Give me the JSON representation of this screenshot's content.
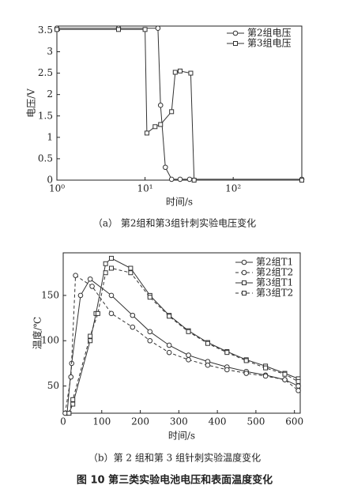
{
  "chart_data": [
    {
      "type": "line",
      "xlog": true,
      "xlim": [
        1,
        600
      ],
      "ylim": [
        0,
        3.6
      ],
      "xticks": [
        {
          "value": 1,
          "label": "10⁰"
        },
        {
          "value": 10,
          "label": "10¹"
        },
        {
          "value": 100,
          "label": "10²"
        }
      ],
      "yticks": [
        0,
        0.5,
        1,
        1.5,
        2,
        2.5,
        3,
        3.5
      ],
      "xlabel": "时间/s",
      "ylabel": "电压/V",
      "legend": "upper right",
      "caption": "（a） 第2组和第3组针刺实验电压变化",
      "series": [
        {
          "name": "第2组电压",
          "color": "#333333",
          "marker": "circle",
          "dashed": false,
          "x": [
            1,
            5,
            14,
            15,
            17,
            20,
            25,
            32,
            600
          ],
          "values": [
            3.55,
            3.55,
            3.55,
            1.75,
            0.3,
            0.02,
            0.02,
            0.02,
            0.02
          ]
        },
        {
          "name": "第3组电压",
          "color": "#333333",
          "marker": "square",
          "dashed": false,
          "x": [
            1,
            5,
            10,
            10.5,
            13,
            15,
            20,
            22,
            25,
            33,
            36,
            600
          ],
          "values": [
            3.52,
            3.52,
            3.52,
            1.1,
            1.25,
            1.3,
            1.6,
            2.52,
            2.55,
            2.5,
            0,
            0
          ]
        }
      ]
    },
    {
      "type": "line",
      "xlog": false,
      "xlim": [
        0,
        615
      ],
      "ylim": [
        20,
        197
      ],
      "xticks": [
        0,
        100,
        200,
        300,
        400,
        500,
        600
      ],
      "yticks": [
        50,
        100,
        150
      ],
      "xlabel": "时间/s",
      "ylabel": "温度/℃",
      "legend": "upper right",
      "caption": "（b）第 2 组和第 3 组针刺实验温度变化",
      "series": [
        {
          "name": "第2组T1",
          "color": "#333333",
          "marker": "circle",
          "dashed": false,
          "x": [
            10,
            22,
            45,
            70,
            125,
            180,
            225,
            275,
            325,
            375,
            425,
            475,
            525,
            575,
            610
          ],
          "values": [
            20,
            75,
            150,
            168,
            150,
            128,
            110,
            95,
            84,
            77,
            71,
            66,
            62,
            57,
            50
          ]
        },
        {
          "name": "第2组T2",
          "color": "#333333",
          "marker": "circle",
          "dashed": true,
          "x": [
            5,
            20,
            32,
            75,
            125,
            180,
            225,
            275,
            325,
            375,
            425,
            475,
            525,
            575,
            610
          ],
          "values": [
            20,
            60,
            172,
            160,
            130,
            115,
            100,
            87,
            79,
            73,
            68,
            64,
            61,
            57,
            45
          ]
        },
        {
          "name": "第3组T1",
          "color": "#333333",
          "marker": "square",
          "dashed": false,
          "x": [
            15,
            25,
            70,
            85,
            110,
            125,
            175,
            225,
            275,
            325,
            375,
            425,
            475,
            525,
            575,
            610
          ],
          "values": [
            20,
            30,
            100,
            130,
            185,
            191,
            180,
            150,
            128,
            111,
            98,
            88,
            79,
            72,
            64,
            58
          ]
        },
        {
          "name": "第3组T2",
          "color": "#333333",
          "marker": "square",
          "dashed": true,
          "x": [
            15,
            25,
            70,
            90,
            110,
            125,
            175,
            225,
            275,
            325,
            375,
            425,
            475,
            525,
            575,
            610
          ],
          "values": [
            20,
            35,
            105,
            130,
            175,
            180,
            175,
            148,
            127,
            110,
            97,
            87,
            78,
            70,
            63,
            55
          ]
        }
      ]
    }
  ],
  "figure_title": "图 10   第三类实验电池电压和表面温度变化"
}
